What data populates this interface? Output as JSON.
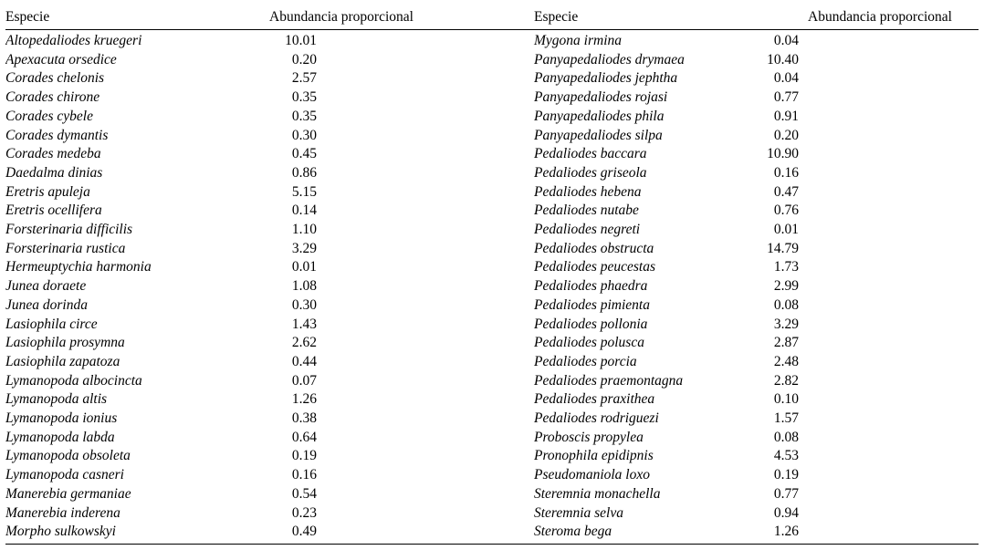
{
  "table": {
    "header": {
      "especie": "Especie",
      "abundancia": "Abundancia proporcional"
    },
    "left_rows": [
      [
        "Altopedaliodes kruegeri",
        "10.01"
      ],
      [
        "Apexacuta orsedice",
        "0.20"
      ],
      [
        "Corades chelonis",
        "2.57"
      ],
      [
        "Corades chirone",
        "0.35"
      ],
      [
        "Corades cybele",
        "0.35"
      ],
      [
        "Corades dymantis",
        "0.30"
      ],
      [
        "Corades medeba",
        "0.45"
      ],
      [
        "Daedalma dinias",
        "0.86"
      ],
      [
        "Eretris apuleja",
        "5.15"
      ],
      [
        "Eretris ocellifera",
        "0.14"
      ],
      [
        "Forsterinaria difficilis",
        "1.10"
      ],
      [
        "Forsterinaria rustica",
        "3.29"
      ],
      [
        "Hermeuptychia harmonia",
        "0.01"
      ],
      [
        "Junea doraete",
        "1.08"
      ],
      [
        "Junea dorinda",
        "0.30"
      ],
      [
        "Lasiophila circe",
        "1.43"
      ],
      [
        "Lasiophila prosymna",
        "2.62"
      ],
      [
        "Lasiophila zapatoza",
        "0.44"
      ],
      [
        "Lymanopoda albocincta",
        "0.07"
      ],
      [
        "Lymanopoda altis",
        "1.26"
      ],
      [
        "Lymanopoda ionius",
        "0.38"
      ],
      [
        "Lymanopoda labda",
        "0.64"
      ],
      [
        "Lymanopoda obsoleta",
        "0.19"
      ],
      [
        "Lymanopoda casneri",
        "0.16"
      ],
      [
        "Manerebia germaniae",
        "0.54"
      ],
      [
        "Manerebia inderena",
        "0.23"
      ],
      [
        "Morpho sulkowskyi",
        "0.49"
      ]
    ],
    "right_rows": [
      [
        "Mygona irmina",
        "0.04"
      ],
      [
        "Panyapedaliodes drymaea",
        "10.40"
      ],
      [
        "Panyapedaliodes jephtha",
        "0.04"
      ],
      [
        "Panyapedaliodes rojasi",
        "0.77"
      ],
      [
        "Panyapedaliodes phila",
        "0.91"
      ],
      [
        "Panyapedaliodes silpa",
        "0.20"
      ],
      [
        "Pedaliodes baccara",
        "10.90"
      ],
      [
        "Pedaliodes griseola",
        "0.16"
      ],
      [
        "Pedaliodes hebena",
        "0.47"
      ],
      [
        "Pedaliodes nutabe",
        "0.76"
      ],
      [
        "Pedaliodes negreti",
        "0.01"
      ],
      [
        "Pedaliodes obstructa",
        "14.79"
      ],
      [
        "Pedaliodes peucestas",
        "1.73"
      ],
      [
        "Pedaliodes phaedra",
        "2.99"
      ],
      [
        "Pedaliodes pimienta",
        "0.08"
      ],
      [
        "Pedaliodes pollonia",
        "3.29"
      ],
      [
        "Pedaliodes polusca",
        "2.87"
      ],
      [
        "Pedaliodes porcia",
        "2.48"
      ],
      [
        "Pedaliodes praemontagna",
        "2.82"
      ],
      [
        "Pedaliodes praxithea",
        "0.10"
      ],
      [
        "Pedaliodes rodriguezi",
        "1.57"
      ],
      [
        "Proboscis propylea",
        "0.08"
      ],
      [
        "Pronophila epidipnis",
        "4.53"
      ],
      [
        "Pseudomaniola loxo",
        "0.19"
      ],
      [
        "Steremnia monachella",
        "0.77"
      ],
      [
        "Steremnia selva",
        "0.94"
      ],
      [
        "Steroma bega",
        "1.26"
      ]
    ]
  }
}
